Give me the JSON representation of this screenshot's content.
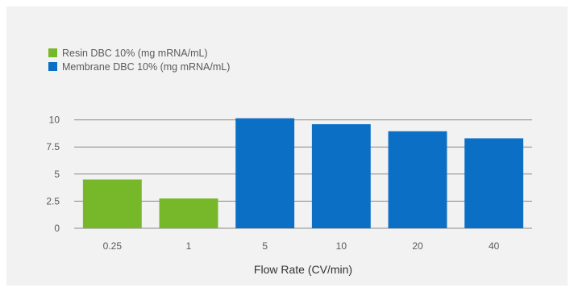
{
  "chart_data": {
    "type": "bar",
    "categories": [
      "0.25",
      "1",
      "5",
      "10",
      "20",
      "40"
    ],
    "series": [
      {
        "name": "Resin DBC 10% (mg mRNA/mL)",
        "color": "#76b82a",
        "values": [
          4.5,
          2.75,
          null,
          null,
          null,
          null
        ]
      },
      {
        "name": "Membrane DBC 10% (mg mRNA/mL)",
        "color": "#0b6fc6",
        "values": [
          null,
          null,
          10.15,
          9.6,
          8.95,
          8.3
        ]
      }
    ],
    "xlabel": "Flow Rate (CV/min)",
    "ylabel": "",
    "ylim": [
      0,
      12.5
    ],
    "yticks": [
      0,
      2.5,
      5,
      7.5,
      10
    ],
    "ytick_labels": [
      "0",
      "2.5",
      "5",
      "7.5",
      "10"
    ],
    "grid": true,
    "legend_position": "top-left",
    "gridline_color": "#8a8a8a",
    "background_color": "#f2f2f2"
  }
}
